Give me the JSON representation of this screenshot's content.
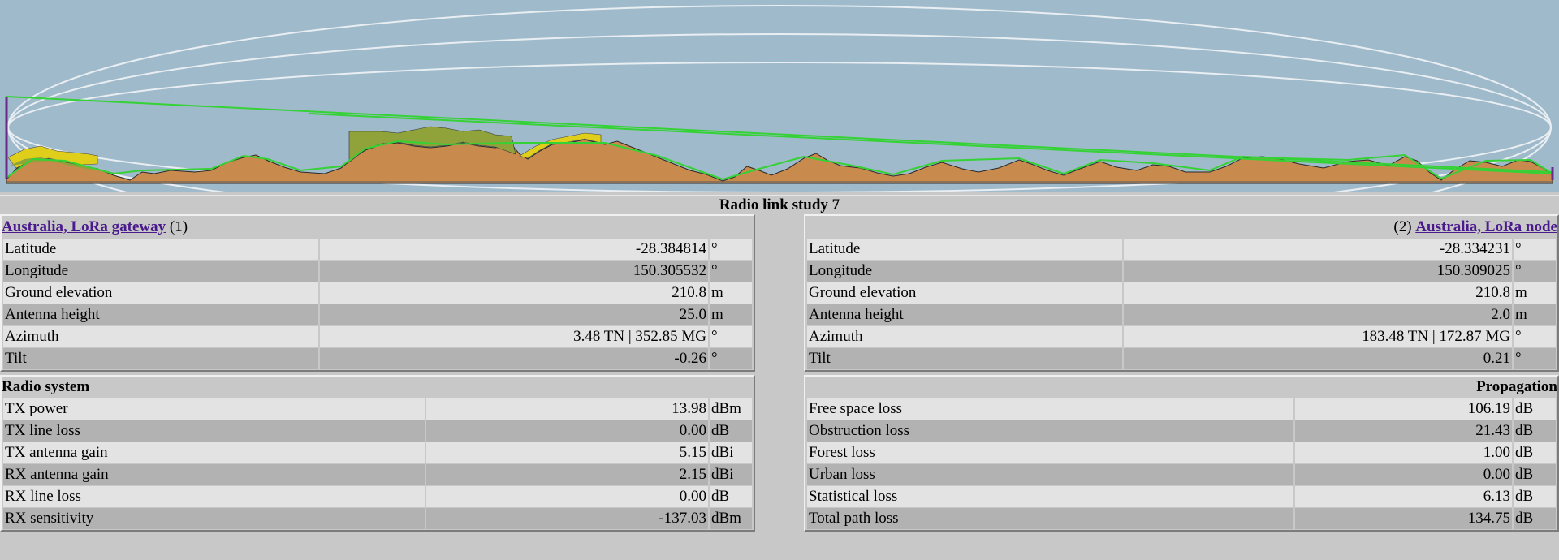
{
  "study_title": "Radio link study 7",
  "left_site": {
    "name": "Australia, LoRa gateway",
    "index": "(1)",
    "rows": [
      {
        "label": "Latitude",
        "value": "-28.384814",
        "unit": "°"
      },
      {
        "label": "Longitude",
        "value": "150.305532",
        "unit": "°"
      },
      {
        "label": "Ground elevation",
        "value": "210.8",
        "unit": "m"
      },
      {
        "label": "Antenna height",
        "value": "25.0",
        "unit": "m"
      },
      {
        "label": "Azimuth",
        "value": "3.48 TN | 352.85 MG",
        "unit": "°"
      },
      {
        "label": "Tilt",
        "value": "-0.26",
        "unit": "°"
      }
    ]
  },
  "right_site": {
    "name": "Australia, LoRa node",
    "index": "(2)",
    "rows": [
      {
        "label": "Latitude",
        "value": "-28.334231",
        "unit": "°"
      },
      {
        "label": "Longitude",
        "value": "150.309025",
        "unit": "°"
      },
      {
        "label": "Ground elevation",
        "value": "210.8",
        "unit": "m"
      },
      {
        "label": "Antenna height",
        "value": "2.0",
        "unit": "m"
      },
      {
        "label": "Azimuth",
        "value": "183.48 TN | 172.87 MG",
        "unit": "°"
      },
      {
        "label": "Tilt",
        "value": "0.21",
        "unit": "°"
      }
    ]
  },
  "radio_system": {
    "title": "Radio system",
    "rows": [
      {
        "label": "TX power",
        "value": "13.98",
        "unit": "dBm"
      },
      {
        "label": "TX line loss",
        "value": "0.00",
        "unit": "dB"
      },
      {
        "label": "TX antenna gain",
        "value": "5.15",
        "unit": "dBi"
      },
      {
        "label": "RX antenna gain",
        "value": "2.15",
        "unit": "dBi"
      },
      {
        "label": "RX line loss",
        "value": "0.00",
        "unit": "dB"
      },
      {
        "label": "RX sensitivity",
        "value": "-137.03",
        "unit": "dBm"
      }
    ]
  },
  "propagation": {
    "title": "Propagation",
    "rows": [
      {
        "label": "Free space loss",
        "value": "106.19",
        "unit": "dB"
      },
      {
        "label": "Obstruction loss",
        "value": "21.43",
        "unit": "dB"
      },
      {
        "label": "Forest loss",
        "value": "1.00",
        "unit": "dB"
      },
      {
        "label": "Urban loss",
        "value": "0.00",
        "unit": "dB"
      },
      {
        "label": "Statistical loss",
        "value": "6.13",
        "unit": "dB"
      },
      {
        "label": "Total path loss",
        "value": "134.75",
        "unit": "dB"
      }
    ]
  },
  "colors": {
    "sky": "#9fbacb",
    "terrain": "#c98a4e",
    "forest": "#8fa33a",
    "clutter": "#e0cf1a",
    "los": "#34d234",
    "fresnel": "#e8eef2",
    "antenna": "#6a2a8a",
    "link": "#4a1a8c"
  }
}
